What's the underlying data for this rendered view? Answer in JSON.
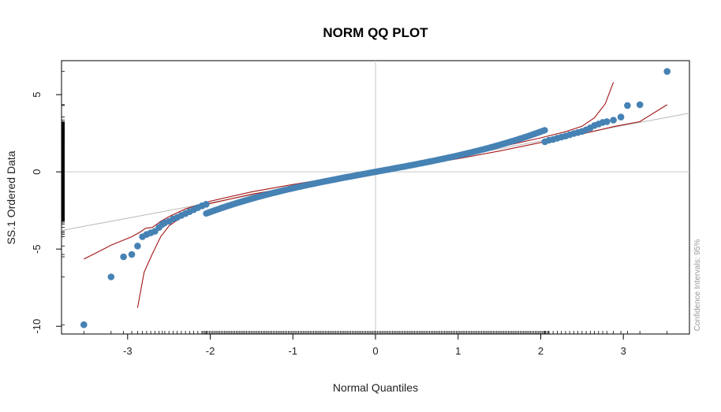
{
  "chart_data": {
    "type": "scatter",
    "title": "NORM QQ PLOT",
    "xlabel": "Normal Quantiles",
    "ylabel": "SS.1 Ordered Data",
    "side_note": "Confidence Intervals: 95%",
    "xlim": [
      -3.8,
      3.8
    ],
    "ylim": [
      -10.5,
      7.2
    ],
    "x_ticks": [
      -3,
      -2,
      -1,
      0,
      1,
      2,
      3
    ],
    "x_tick_labels": [
      "-3",
      "-2",
      "-1",
      "0",
      "1",
      "2",
      "3"
    ],
    "y_ticks": [
      -10,
      -5,
      0,
      5
    ],
    "y_tick_labels": [
      "-10",
      "-5",
      "0",
      "5"
    ],
    "reference_lines": {
      "vertical_x": 0,
      "horizontal_y": 0
    },
    "reference_line": {
      "points": [
        [
          -3.8,
          -3.8
        ],
        [
          3.8,
          3.8
        ]
      ]
    },
    "points": [
      [
        -3.53,
        -9.9
      ],
      [
        -3.2,
        -6.8
      ],
      [
        -3.05,
        -5.5
      ],
      [
        -2.95,
        -5.35
      ],
      [
        -2.88,
        -4.8
      ],
      [
        -2.82,
        -4.2
      ],
      [
        -2.77,
        -4.05
      ],
      [
        -2.72,
        -3.95
      ],
      [
        -2.67,
        -3.85
      ],
      [
        -2.62,
        -3.6
      ],
      [
        -2.58,
        -3.4
      ],
      [
        -2.55,
        -3.3
      ],
      [
        -2.5,
        -3.2
      ],
      [
        -2.45,
        -3.05
      ],
      [
        -2.4,
        -2.95
      ],
      [
        -2.35,
        -2.82
      ],
      [
        -2.3,
        -2.7
      ],
      [
        -2.25,
        -2.58
      ],
      [
        -2.2,
        -2.45
      ],
      [
        -2.15,
        -2.32
      ],
      [
        -2.1,
        -2.2
      ],
      [
        -2.05,
        -2.1
      ],
      [
        2.05,
        1.95
      ],
      [
        2.1,
        2.05
      ],
      [
        2.15,
        2.1
      ],
      [
        2.2,
        2.18
      ],
      [
        2.25,
        2.25
      ],
      [
        2.3,
        2.32
      ],
      [
        2.35,
        2.4
      ],
      [
        2.4,
        2.48
      ],
      [
        2.45,
        2.55
      ],
      [
        2.5,
        2.62
      ],
      [
        2.55,
        2.72
      ],
      [
        2.6,
        2.85
      ],
      [
        2.65,
        3.0
      ],
      [
        2.7,
        3.1
      ],
      [
        2.75,
        3.2
      ],
      [
        2.8,
        3.25
      ],
      [
        2.88,
        3.35
      ],
      [
        2.97,
        3.55
      ],
      [
        3.05,
        4.3
      ],
      [
        3.2,
        4.35
      ],
      [
        3.53,
        6.5
      ]
    ],
    "body_segment": {
      "x_range": [
        -2.05,
        2.05
      ],
      "shape": "0.98*x + 0.08*x^3",
      "color": "#4682b4"
    },
    "confidence_band": {
      "upper": [
        [
          -3.53,
          -5.65
        ],
        [
          -3.2,
          -4.75
        ],
        [
          -2.95,
          -4.2
        ],
        [
          -2.85,
          -3.9
        ],
        [
          -2.78,
          -3.65
        ],
        [
          -2.7,
          -3.6
        ],
        [
          -2.6,
          -3.2
        ],
        [
          -2.5,
          -2.9
        ],
        [
          -2.3,
          -2.4
        ],
        [
          -2.0,
          -1.9
        ],
        [
          -1.5,
          -1.3
        ],
        [
          -1.0,
          -0.82
        ],
        [
          -0.5,
          -0.38
        ],
        [
          0.0,
          0.05
        ],
        [
          0.5,
          0.55
        ],
        [
          1.0,
          1.05
        ],
        [
          1.5,
          1.6
        ],
        [
          2.0,
          2.2
        ],
        [
          2.3,
          2.6
        ],
        [
          2.5,
          2.95
        ],
        [
          2.65,
          3.5
        ],
        [
          2.78,
          4.4
        ],
        [
          2.88,
          5.8
        ]
      ],
      "lower": [
        [
          -2.88,
          -8.8
        ],
        [
          -2.8,
          -6.5
        ],
        [
          -2.7,
          -5.3
        ],
        [
          -2.6,
          -4.2
        ],
        [
          -2.5,
          -3.5
        ],
        [
          -2.3,
          -2.75
        ],
        [
          -2.0,
          -2.05
        ],
        [
          -1.5,
          -1.45
        ],
        [
          -1.0,
          -0.98
        ],
        [
          -0.5,
          -0.5
        ],
        [
          0.0,
          -0.05
        ],
        [
          0.5,
          0.4
        ],
        [
          1.0,
          0.85
        ],
        [
          1.5,
          1.35
        ],
        [
          2.0,
          1.9
        ],
        [
          2.3,
          2.25
        ],
        [
          2.5,
          2.45
        ],
        [
          2.7,
          2.7
        ],
        [
          2.9,
          2.95
        ],
        [
          3.2,
          3.25
        ],
        [
          3.53,
          4.35
        ]
      ],
      "color": "#a31515"
    },
    "colors": {
      "points": "#4682b4",
      "confidence_band": "#a31515",
      "reference_line": "#b8b8b8",
      "crosshair": "#c8c8c8",
      "frame": "#000000"
    },
    "grid": false,
    "rug": true
  }
}
